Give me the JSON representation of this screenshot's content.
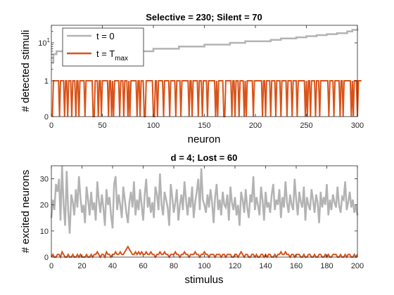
{
  "chart_data": [
    {
      "type": "line",
      "title": "Selective = 230; Silent = 70",
      "xlabel": "neuron",
      "ylabel": "# detected stimuli",
      "xlim": [
        0,
        300
      ],
      "xticks": [
        "0",
        "50",
        "100",
        "150",
        "200",
        "250",
        "300"
      ],
      "yticks": [
        "0",
        "1",
        "10^1"
      ],
      "yscale": "custom-log",
      "legend_position": "top-left",
      "series": [
        {
          "name": "t = 0",
          "color": "#b3b3b3",
          "description": "sorted ascending",
          "x": [
            1,
            2,
            5,
            6,
            50,
            75,
            100,
            110,
            125,
            140,
            150,
            160,
            175,
            190,
            200,
            215,
            225,
            240,
            250,
            260,
            270,
            280,
            290,
            295,
            300
          ],
          "y": [
            3,
            5,
            6,
            6,
            6,
            6,
            7,
            7,
            8,
            8,
            9,
            9,
            10,
            11,
            11,
            12,
            13,
            14,
            15,
            16,
            17,
            18,
            20,
            22,
            24
          ]
        },
        {
          "name": "t = T",
          "name_subscript": "max",
          "color": "#d95319",
          "values_binary": "0111111011110110111011101101111101111111001110110111111011010111110111011101011111101101110011111110011011111011111011111011110111111101101111101110111101111111010111110011111101101110111101011111101111111101101111011110111101111101111011110111111101011011110111011111111011110111110110111111101011101111"
        }
      ]
    },
    {
      "type": "line",
      "title": "d = 4; Lost = 60",
      "xlabel": "stimulus",
      "ylabel": "# excited neurons",
      "xlim": [
        0,
        200
      ],
      "ylim": [
        0,
        35
      ],
      "xticks": [
        "0",
        "20",
        "40",
        "60",
        "80",
        "100",
        "120",
        "140",
        "160",
        "180",
        "200"
      ],
      "yticks": [
        "0",
        "10",
        "20",
        "30"
      ],
      "series": [
        {
          "name": "t = 0",
          "color": "#b3b3b3",
          "values": [
            15,
            22,
            18,
            28,
            25,
            30,
            14,
            35,
            20,
            12,
            33,
            18,
            9,
            24,
            21,
            16,
            26,
            19,
            31,
            23,
            17,
            20,
            13,
            27,
            22,
            16,
            25,
            18,
            21,
            14,
            29,
            22,
            17,
            24,
            19,
            12,
            26,
            20,
            23,
            16,
            11,
            28,
            31,
            18,
            24,
            20,
            15,
            27,
            22,
            17,
            13,
            21,
            25,
            19,
            29,
            16,
            22,
            18,
            26,
            20,
            14,
            24,
            30,
            19,
            23,
            17,
            21,
            15,
            27,
            24,
            18,
            32,
            20,
            16,
            25,
            22,
            19,
            12,
            28,
            23,
            17,
            21,
            26,
            14,
            20,
            24,
            18,
            29,
            22,
            16,
            23,
            19,
            27,
            15,
            21,
            25,
            30,
            18,
            34,
            22,
            20,
            17,
            24,
            19,
            26,
            21,
            13,
            23,
            28,
            18,
            22,
            16,
            25,
            20,
            19,
            24,
            14,
            27,
            21,
            18,
            23,
            16,
            20,
            12,
            25,
            22,
            17,
            26,
            19,
            15,
            24,
            21,
            31,
            18,
            23,
            20,
            16,
            27,
            22,
            14,
            25,
            19,
            21,
            17,
            24,
            28,
            18,
            22,
            20,
            26,
            15,
            23,
            19,
            29,
            21,
            17,
            24,
            20,
            18,
            30,
            22,
            16,
            25,
            21,
            19,
            27,
            14,
            23,
            20,
            18,
            26,
            22,
            17,
            24,
            21,
            13,
            25,
            19,
            23,
            20,
            28,
            16,
            22,
            18,
            24,
            21,
            19,
            27,
            20,
            17,
            23,
            22,
            29,
            18,
            21,
            25,
            19,
            22,
            17,
            20,
            16
          ]
        },
        {
          "name": "t = T",
          "name_subscript": "max",
          "color": "#d95319",
          "values": [
            0,
            1,
            0,
            0,
            1,
            1,
            0,
            2,
            1,
            0,
            0,
            1,
            0,
            0,
            1,
            0,
            0,
            1,
            0,
            1,
            0,
            0,
            0,
            1,
            0,
            0,
            1,
            0,
            1,
            1,
            2,
            1,
            0,
            1,
            1,
            0,
            2,
            1,
            1,
            0,
            1,
            1,
            2,
            1,
            1,
            2,
            1,
            1,
            2,
            3,
            4,
            3,
            2,
            1,
            1,
            2,
            1,
            2,
            1,
            2,
            1,
            1,
            2,
            1,
            1,
            2,
            1,
            1,
            0,
            1,
            1,
            2,
            1,
            1,
            2,
            1,
            1,
            0,
            1,
            1,
            1,
            2,
            1,
            1,
            0,
            1,
            1,
            2,
            1,
            1,
            0,
            1,
            1,
            1,
            2,
            1,
            1,
            0,
            1,
            1,
            2,
            1,
            1,
            0,
            1,
            1,
            1,
            0,
            1,
            1,
            1,
            0,
            1,
            1,
            0,
            1,
            1,
            1,
            0,
            0,
            1,
            1,
            0,
            1,
            2,
            1,
            0,
            1,
            1,
            0,
            0,
            1,
            1,
            0,
            1,
            0,
            0,
            1,
            1,
            0,
            1,
            0,
            1,
            1,
            0,
            0,
            1,
            0,
            1,
            1,
            2,
            1,
            1,
            2,
            1,
            1,
            0,
            1,
            1,
            0,
            1,
            1,
            1,
            0,
            0,
            1,
            0,
            0,
            1,
            1,
            0,
            0,
            1,
            0,
            0,
            1,
            1,
            0,
            0,
            1,
            0,
            1,
            0,
            0,
            1,
            1,
            1,
            0,
            0,
            1,
            0,
            0,
            1,
            0,
            1,
            1,
            0,
            0,
            1,
            0,
            1
          ]
        }
      ]
    }
  ]
}
